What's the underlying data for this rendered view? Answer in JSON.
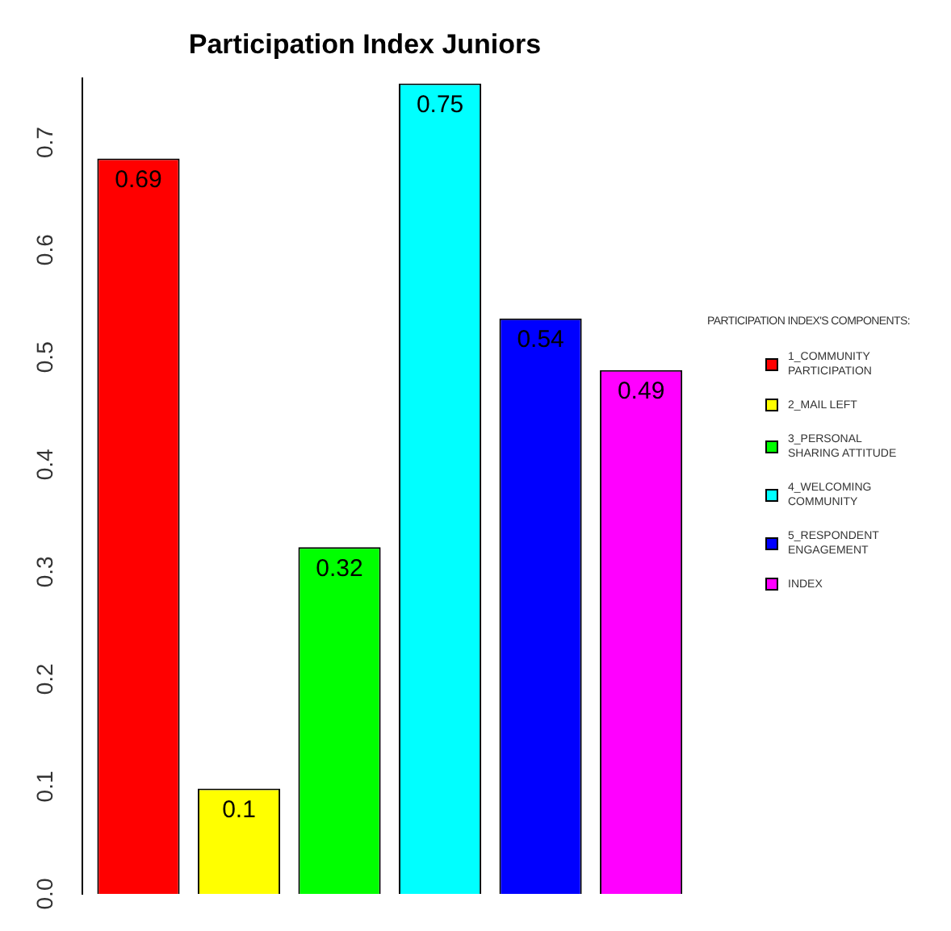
{
  "chart_data": {
    "type": "bar",
    "title": "Participation Index Juniors",
    "legend_title": "PARTICIPATION INDEX'S COMPONENTS:",
    "categories": [
      null
    ],
    "series": [
      {
        "name": "1_COMMUNITY PARTICIPATION",
        "color": "#ff0000",
        "values": [
          0.685
        ],
        "value_labels": [
          "0.69"
        ]
      },
      {
        "name": "2_MAIL LEFT",
        "color": "#ffff00",
        "values": [
          0.098
        ],
        "value_labels": [
          "0.1"
        ]
      },
      {
        "name": "3_PERSONAL SHARING ATTITUDE",
        "color": "#00ff00",
        "values": [
          0.323
        ],
        "value_labels": [
          "0.32"
        ]
      },
      {
        "name": "4_WELCOMING COMMUNITY",
        "color": "#00ffff",
        "values": [
          0.755
        ],
        "value_labels": [
          "0.75"
        ]
      },
      {
        "name": "5_RESPONDENT ENGAGEMENT",
        "color": "#0000ff",
        "values": [
          0.536
        ],
        "value_labels": [
          "0.54"
        ]
      },
      {
        "name": "INDEX",
        "color": "#ff00ff",
        "values": [
          0.488
        ],
        "value_labels": [
          "0.49"
        ]
      }
    ],
    "ylim": [
      0,
      0.76
    ],
    "yticks": [
      {
        "value": 0,
        "label": "0.0"
      },
      {
        "value": 0.1,
        "label": "0.1"
      },
      {
        "value": 0.2,
        "label": "0.2"
      },
      {
        "value": 0.3,
        "label": "0.3"
      },
      {
        "value": 0.4,
        "label": "0.4"
      },
      {
        "value": 0.5,
        "label": "0.5"
      },
      {
        "value": 0.6,
        "label": "0.6"
      },
      {
        "value": 0.7,
        "label": "0.7"
      }
    ],
    "grid": false,
    "legend": "right"
  }
}
